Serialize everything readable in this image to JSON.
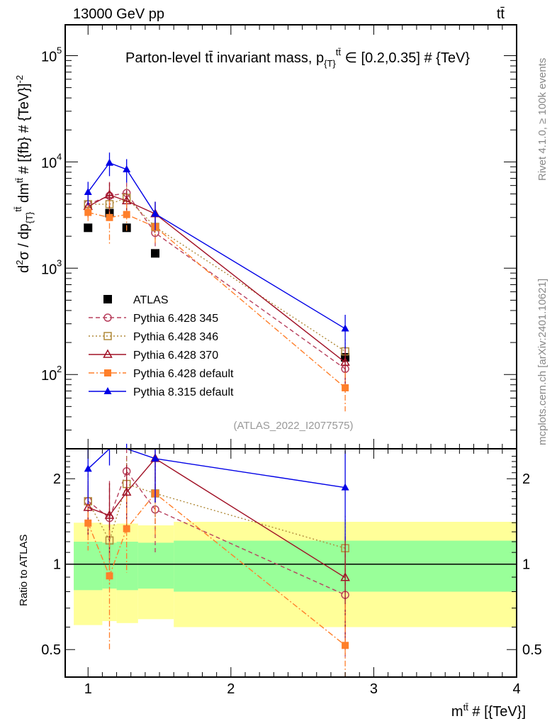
{
  "header": {
    "left": "13000 GeV pp",
    "right": "tt̄"
  },
  "side_text": {
    "top": "Rivet 4.1.0, ≥ 100k events",
    "bottom": "mcplots.cern.ch [arXiv:2401.10621]"
  },
  "chart_data": [
    {
      "type": "scatter",
      "title": "Parton-level tt̄ invariant mass, p{T}tt̄ ∈ [0.2,0.35] # {TeV}",
      "title_parts": {
        "a": "Parton-level tt̄ invariant mass, p",
        "sub": "{T}",
        "sup": "tt̄",
        "b": " ∈ [0.2,0.35] # {TeV}"
      },
      "ylabel": "d²σ / dp{T}tt̄ dmtt̄ # [{fb} # {TeV}-2]",
      "ylabel_parts": {
        "a": "d",
        "a2": "σ / dp",
        "sub": "{T}",
        "sup": "tt̄",
        "b": " dm",
        "b_sup": "tt̄",
        "c": " # [{fb} # {TeV}]",
        "c_sup": "-2",
        "d": "2"
      },
      "yscale": "log",
      "ylim": [
        20,
        195000
      ],
      "xlim": [
        0.84,
        4.0
      ],
      "yticks": [
        {
          "v": 100,
          "label": "10",
          "exp": "2"
        },
        {
          "v": 1000,
          "label": "10",
          "exp": "3"
        },
        {
          "v": 10000,
          "label": "10",
          "exp": "4"
        },
        {
          "v": 100000,
          "label": "10",
          "exp": "5"
        }
      ],
      "annotation": "(ATLAS_2022_I2077575)",
      "legend_position": "bottom-left",
      "x": [
        1.0,
        1.15,
        1.27,
        1.47,
        2.8
      ],
      "series": [
        {
          "name": "ATLAS",
          "color": "#000000",
          "marker": "square-filled",
          "line": "none",
          "values": [
            2400,
            3300,
            2400,
            1380,
            145
          ],
          "err": [
            0.05,
            0.05,
            0.05,
            0.05,
            0.08
          ]
        },
        {
          "name": "Pythia 6.428 345",
          "color": "#b8405e",
          "marker": "circle-open",
          "line": "dashed",
          "values": [
            4000,
            4800,
            5100,
            2150,
            113
          ],
          "err": [
            0.25,
            0.35,
            0.25,
            0.3,
            0.4
          ]
        },
        {
          "name": "Pythia 6.428 346",
          "color": "#b08a3a",
          "marker": "square-open",
          "line": "dotted",
          "values": [
            4000,
            4000,
            4600,
            2450,
            165
          ],
          "err": [
            0.2,
            0.3,
            0.25,
            0.25,
            0.3
          ]
        },
        {
          "name": "Pythia 6.428 370",
          "color": "#a01025",
          "marker": "triangle-open",
          "line": "solid",
          "values": [
            3800,
            4900,
            4300,
            3250,
            130
          ],
          "err": [
            0.2,
            0.3,
            0.25,
            0.3,
            0.4
          ]
        },
        {
          "name": "Pythia 6.428 default",
          "color": "#ff7f2a",
          "marker": "square-filled",
          "line": "dashdot",
          "values": [
            3350,
            3000,
            3200,
            2450,
            75
          ],
          "err": [
            0.2,
            0.45,
            0.3,
            0.3,
            0.4
          ]
        },
        {
          "name": "Pythia 8.315 default",
          "color": "#0000e6",
          "marker": "triangle-filled",
          "line": "solid",
          "values": [
            5200,
            9800,
            8500,
            3250,
            270
          ],
          "err": [
            0.25,
            0.25,
            0.25,
            0.3,
            0.35
          ]
        }
      ]
    },
    {
      "type": "scatter",
      "ylabel": "Ratio to ATLAS",
      "xlabel": "mtt̄ # [{TeV}]",
      "xlabel_parts": {
        "a": "m",
        "sup": "tt̄",
        "b": " # [{TeV}]"
      },
      "yscale": "log",
      "ylim": [
        0.4,
        2.55
      ],
      "yticks": [
        {
          "v": 0.5,
          "label": "0.5"
        },
        {
          "v": 1,
          "label": "1"
        },
        {
          "v": 2,
          "label": "2"
        }
      ],
      "xticks": [
        {
          "v": 1,
          "label": "1"
        },
        {
          "v": 2,
          "label": "2"
        },
        {
          "v": 3,
          "label": "3"
        },
        {
          "v": 4,
          "label": "4"
        }
      ],
      "bin_edges": [
        0.9,
        1.1,
        1.2,
        1.35,
        1.6,
        4.0
      ],
      "band_inner": {
        "color": "#99ff99",
        "upper": [
          1.2,
          1.19,
          1.2,
          1.19,
          1.21
        ],
        "lower": [
          0.81,
          0.82,
          0.81,
          0.82,
          0.8
        ]
      },
      "band_outer": {
        "color": "#ffff99",
        "upper": [
          1.4,
          1.38,
          1.39,
          1.37,
          1.41
        ],
        "lower": [
          0.61,
          0.63,
          0.62,
          0.64,
          0.6
        ]
      },
      "ratio_to": "ATLAS"
    }
  ]
}
